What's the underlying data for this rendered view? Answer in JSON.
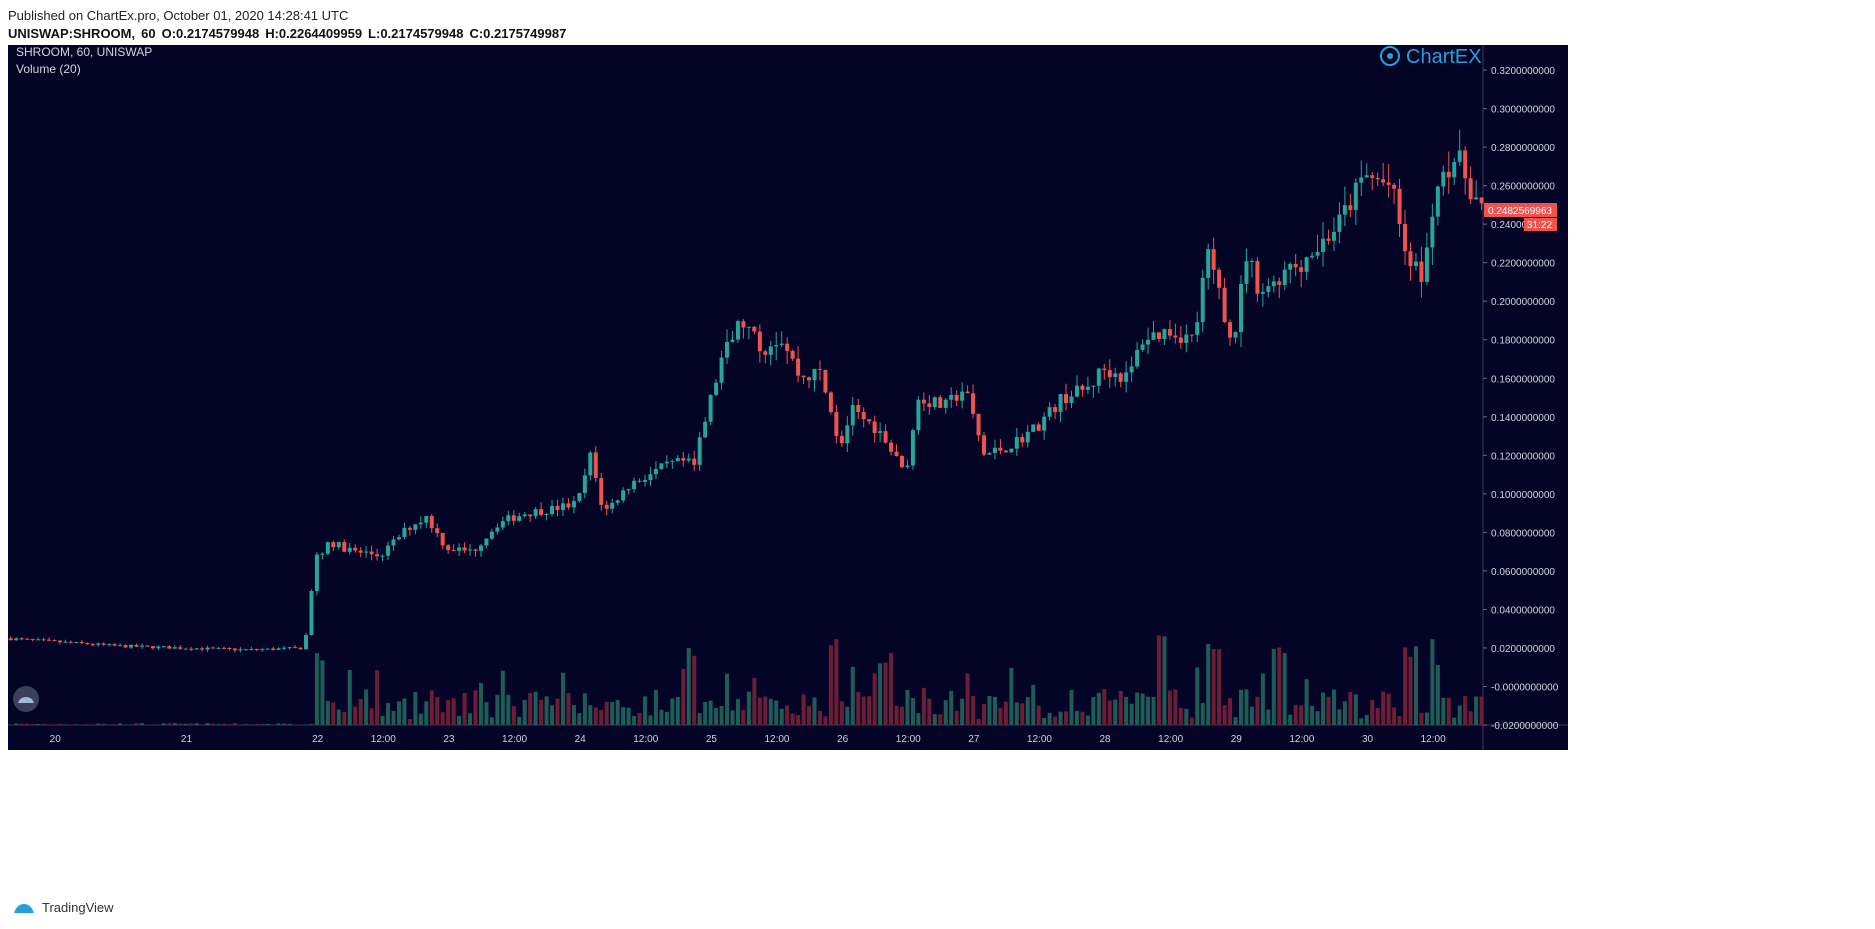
{
  "header": {
    "published": "Published on ChartEx.pro, October 01, 2020 14:28:41 UTC",
    "symbol": "UNISWAP:SHROOM,",
    "interval": "60",
    "open": "O:0.2174579948",
    "high": "H:0.2264409959",
    "low": "L:0.2174579948",
    "close": "C:0.2175749987"
  },
  "legend": {
    "series": "SHROOM, 60, UNISWAP",
    "volume": "Volume (20)"
  },
  "brand": {
    "chartex": "ChartEX",
    "tradingview": "TradingView"
  },
  "price_badge": {
    "value": "0.2482569963",
    "countdown": "31:22",
    "color": "#ef5350"
  },
  "colors": {
    "background": "#040427",
    "up": "#26a69a",
    "down": "#ef5350",
    "vol_up": "#1e5c58",
    "vol_down": "#6b1e36",
    "axis_text": "#d1d4dc",
    "brand": "#2a9fd6"
  },
  "chart_data": {
    "type": "candlestick",
    "title": "SHROOM, 60, UNISWAP",
    "x_tick_labels": [
      "20",
      "21",
      "22",
      "12:00",
      "23",
      "12:00",
      "24",
      "12:00",
      "25",
      "12:00",
      "26",
      "12:00",
      "27",
      "12:00",
      "28",
      "12:00",
      "29",
      "12:00",
      "30",
      "12:00"
    ],
    "x_tick_days": [
      20,
      21,
      22,
      22.5,
      23,
      23.5,
      24,
      24.5,
      25,
      25.5,
      26,
      26.5,
      27,
      27.5,
      28,
      28.5,
      29,
      29.5,
      30,
      30.5
    ],
    "x_range_days": [
      19.64,
      30.88
    ],
    "y_ticks": [
      "0.3200000000",
      "0.3000000000",
      "0.2800000000",
      "0.2600000000",
      "0.2400000000",
      "0.2200000000",
      "0.2000000000",
      "0.1800000000",
      "0.1600000000",
      "0.1400000000",
      "0.1200000000",
      "0.1000000000",
      "0.0800000000",
      "0.0600000000",
      "0.0400000000",
      "0.0200000000",
      "-0.0000000000",
      "-0.0200000000"
    ],
    "y_tick_values": [
      0.32,
      0.3,
      0.28,
      0.26,
      0.24,
      0.22,
      0.2,
      0.18,
      0.16,
      0.14,
      0.12,
      0.1,
      0.08,
      0.06,
      0.04,
      0.02,
      0.0,
      -0.02
    ],
    "ylim": [
      -0.02,
      0.333
    ],
    "price_path": [
      [
        19.64,
        0.025
      ],
      [
        20.5,
        0.021
      ],
      [
        21.0,
        0.02
      ],
      [
        21.5,
        0.019
      ],
      [
        21.92,
        0.02
      ],
      [
        22.0,
        0.065
      ],
      [
        22.1,
        0.075
      ],
      [
        22.3,
        0.07
      ],
      [
        22.5,
        0.068
      ],
      [
        22.7,
        0.082
      ],
      [
        22.85,
        0.088
      ],
      [
        23.0,
        0.072
      ],
      [
        23.2,
        0.07
      ],
      [
        23.4,
        0.085
      ],
      [
        23.6,
        0.09
      ],
      [
        23.8,
        0.092
      ],
      [
        24.0,
        0.095
      ],
      [
        24.1,
        0.12
      ],
      [
        24.2,
        0.09
      ],
      [
        24.4,
        0.105
      ],
      [
        24.7,
        0.115
      ],
      [
        24.9,
        0.118
      ],
      [
        25.0,
        0.145
      ],
      [
        25.1,
        0.17
      ],
      [
        25.25,
        0.19
      ],
      [
        25.4,
        0.175
      ],
      [
        25.55,
        0.182
      ],
      [
        25.7,
        0.16
      ],
      [
        25.85,
        0.163
      ],
      [
        26.0,
        0.125
      ],
      [
        26.1,
        0.143
      ],
      [
        26.3,
        0.133
      ],
      [
        26.5,
        0.11
      ],
      [
        26.6,
        0.15
      ],
      [
        26.8,
        0.145
      ],
      [
        26.95,
        0.155
      ],
      [
        27.1,
        0.12
      ],
      [
        27.3,
        0.125
      ],
      [
        27.5,
        0.135
      ],
      [
        27.7,
        0.15
      ],
      [
        27.9,
        0.155
      ],
      [
        28.0,
        0.165
      ],
      [
        28.2,
        0.16
      ],
      [
        28.3,
        0.18
      ],
      [
        28.5,
        0.185
      ],
      [
        28.7,
        0.18
      ],
      [
        28.8,
        0.225
      ],
      [
        28.9,
        0.2
      ],
      [
        29.0,
        0.18
      ],
      [
        29.1,
        0.225
      ],
      [
        29.2,
        0.205
      ],
      [
        29.4,
        0.215
      ],
      [
        29.6,
        0.225
      ],
      [
        29.8,
        0.24
      ],
      [
        30.0,
        0.265
      ],
      [
        30.2,
        0.26
      ],
      [
        30.3,
        0.228
      ],
      [
        30.45,
        0.21
      ],
      [
        30.55,
        0.265
      ],
      [
        30.7,
        0.275
      ],
      [
        30.88,
        0.248
      ]
    ],
    "volume_pattern": "low before day 22; spikes near day 22, 24.8, 25.9, 26.3, 28.4, 28.8, 29.3, 30.3, 30.5"
  }
}
